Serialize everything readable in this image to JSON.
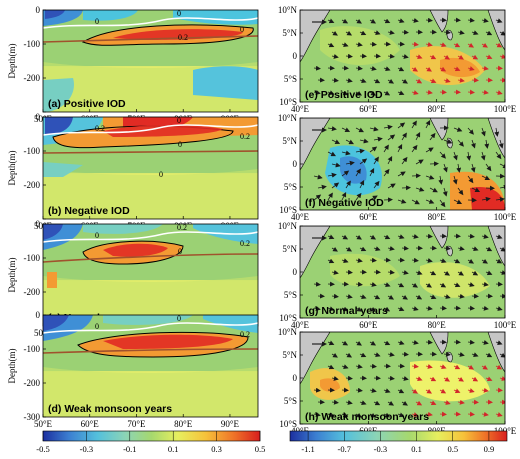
{
  "chart_data": {
    "type": "heatmap",
    "panels": [
      {
        "id": "a",
        "label": "(a) Positive IOD",
        "kind": "section",
        "contour_labels": [
          "0",
          "0",
          "0",
          "0.2"
        ],
        "max_value": 0.45
      },
      {
        "id": "b",
        "label": "(b) Negative IOD",
        "kind": "section",
        "contour_labels": [
          "0.2",
          "0",
          "0.2",
          "0",
          "0"
        ],
        "max_value": 0.5
      },
      {
        "id": "c",
        "label": "(c) Normal years",
        "kind": "section",
        "contour_labels": [
          "0",
          "0.2",
          "0.2",
          "0"
        ],
        "max_value": 0.45
      },
      {
        "id": "d",
        "label": "(d) Weak monsoon years",
        "kind": "section",
        "contour_labels": [
          "0",
          "0",
          "0.2"
        ],
        "max_value": 0.45
      },
      {
        "id": "e",
        "label": "(e) Positive IOD",
        "kind": "map",
        "max_value": 0.9
      },
      {
        "id": "f",
        "label": "(f) Negative IOD",
        "kind": "map",
        "max_value": 1.3
      },
      {
        "id": "g",
        "label": "(g) Normal years",
        "kind": "map",
        "max_value": 0.5
      },
      {
        "id": "h",
        "label": "(h) Weak monsoon years",
        "kind": "map",
        "max_value": 0.9
      }
    ],
    "section_axes": {
      "ylabel": "Depth(m)",
      "x_ticks": [
        "50°E",
        "60°E",
        "70°E",
        "80°E",
        "90°E"
      ],
      "y_ticks": [
        "0",
        "-100",
        "-200",
        "-300"
      ],
      "xlim": [
        50,
        96
      ],
      "ylim": [
        -300,
        0
      ]
    },
    "map_axes": {
      "x_ticks": [
        "40°E",
        "60°E",
        "80°E",
        "100°E"
      ],
      "y_ticks": [
        "10°N",
        "5°N",
        "0",
        "5°S",
        "10°S"
      ],
      "xlim": [
        40,
        100
      ],
      "ylim": [
        -10,
        10
      ]
    },
    "colorbar_left": {
      "ticks": [
        "-0.5",
        "-0.3",
        "-0.1",
        "0.1",
        "0.3",
        "0.5"
      ],
      "range": [
        -0.5,
        0.5
      ]
    },
    "colorbar_right": {
      "ticks": [
        "-1.1",
        "-0.7",
        "-0.3",
        "0.1",
        "0.5",
        "0.9"
      ],
      "range": [
        -1.3,
        1.1
      ]
    },
    "colors": {
      "negative_dark": "#2a3aa8",
      "neutral_green": "#9bd174",
      "neutral_yellow": "#eef26a",
      "positive_orange": "#f39a33",
      "positive_red": "#e12b24",
      "contour_brown": "#a0522d",
      "land": "#c6c6c6",
      "vector_red": "#d2262b",
      "vector_black": "#1a1a1a"
    }
  }
}
